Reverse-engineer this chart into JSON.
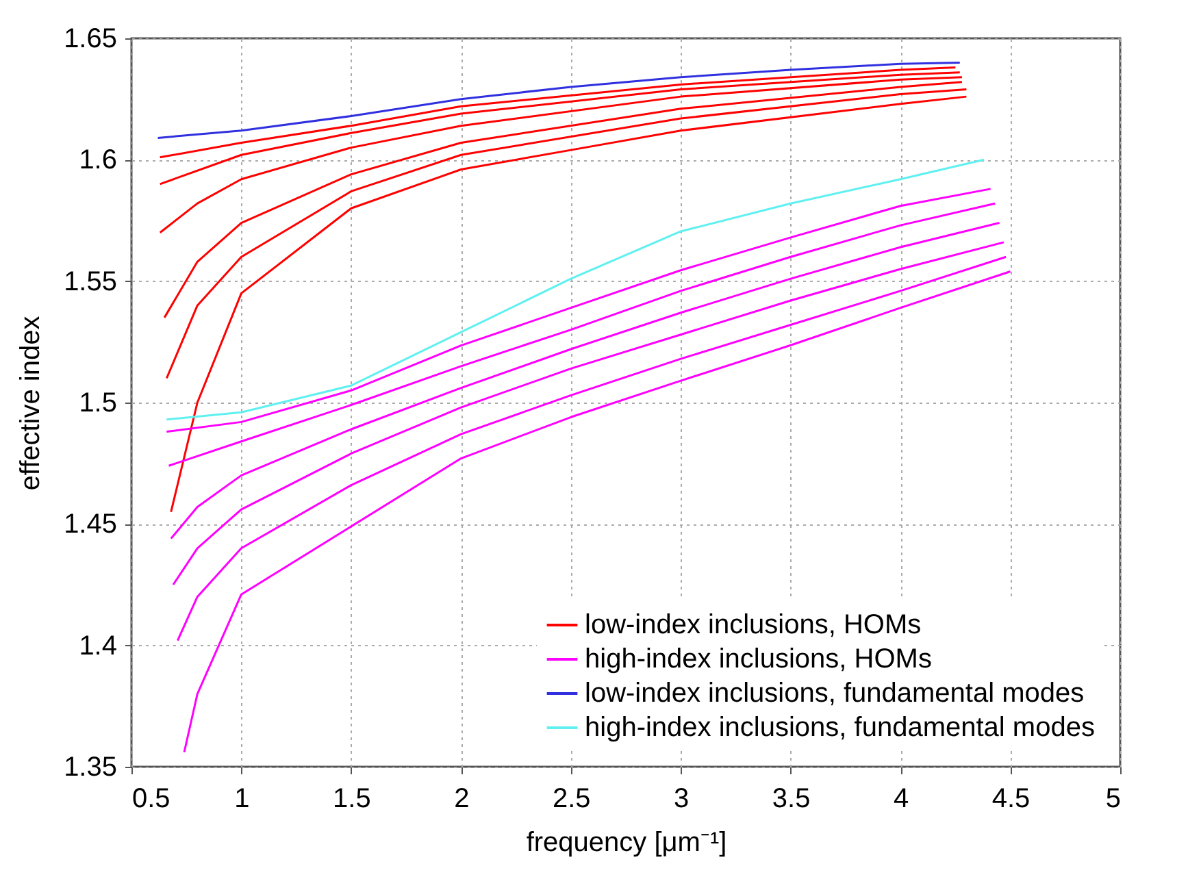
{
  "chart_data": {
    "type": "line",
    "xlabel": "frequency [μm⁻¹]",
    "ylabel": "effective index",
    "xlim": [
      0.5,
      5
    ],
    "xticks": [
      0.5,
      1,
      1.5,
      2,
      2.5,
      3,
      3.5,
      4,
      4.5,
      5
    ],
    "ylim": [
      1.35,
      1.65
    ],
    "yticks": [
      1.35,
      1.4,
      1.45,
      1.5,
      1.55,
      1.6,
      1.65
    ],
    "grid": true,
    "legend": "bottom right",
    "series": [
      {
        "name": "low-index inclusions, HOMs",
        "color": "#ff0000",
        "x": [
          0.63,
          1,
          1.5,
          2,
          3,
          4,
          4.25
        ],
        "values": [
          1.601,
          1.607,
          1.614,
          1.622,
          1.631,
          1.637,
          1.638
        ]
      },
      {
        "name": "high-index inclusions, HOMs",
        "color": "#ff00ff",
        "x": [
          0.66,
          1,
          1.5,
          2,
          2.5,
          3,
          3.5,
          4,
          4.41
        ],
        "values": [
          1.488,
          1.492,
          1.505,
          1.5235,
          1.539,
          1.5545,
          1.568,
          1.581,
          1.588
        ]
      },
      {
        "name": "low-index inclusions, fundamental modes",
        "color": "#3030e0",
        "x": [
          0.62,
          1,
          1.5,
          2,
          2.5,
          3,
          3.5,
          4,
          4.27
        ],
        "values": [
          1.609,
          1.612,
          1.618,
          1.625,
          1.63,
          1.634,
          1.637,
          1.6395,
          1.64
        ]
      },
      {
        "name": "high-index inclusions, fundamental modes",
        "color": "#60f0f0",
        "x": [
          0.66,
          1,
          1.5,
          2,
          2.5,
          3,
          3.5,
          4,
          4.38
        ],
        "values": [
          1.493,
          1.496,
          1.507,
          1.529,
          1.551,
          1.5705,
          1.582,
          1.592,
          1.6
        ]
      },
      {
        "color": "#ff0000",
        "x": [
          0.63,
          1,
          1.5,
          2,
          3,
          4,
          4.27
        ],
        "values": [
          1.59,
          1.602,
          1.611,
          1.619,
          1.629,
          1.635,
          1.636
        ]
      },
      {
        "color": "#ff0000",
        "x": [
          0.63,
          0.8,
          1,
          1.5,
          2,
          3,
          4,
          4.28
        ],
        "values": [
          1.57,
          1.582,
          1.592,
          1.605,
          1.614,
          1.626,
          1.633,
          1.634
        ]
      },
      {
        "color": "#ff0000",
        "x": [
          0.65,
          0.8,
          1,
          1.5,
          2,
          3,
          4,
          4.28
        ],
        "values": [
          1.535,
          1.558,
          1.574,
          1.594,
          1.607,
          1.621,
          1.63,
          1.632
        ]
      },
      {
        "color": "#ff0000",
        "x": [
          0.66,
          0.8,
          1,
          1.5,
          2,
          3,
          4,
          4.3
        ],
        "values": [
          1.51,
          1.54,
          1.56,
          1.587,
          1.602,
          1.617,
          1.627,
          1.629
        ]
      },
      {
        "color": "#ff0000",
        "x": [
          0.68,
          0.8,
          1,
          1.5,
          2,
          2.5,
          3,
          4,
          4.3
        ],
        "values": [
          1.455,
          1.5,
          1.545,
          1.58,
          1.596,
          1.604,
          1.612,
          1.623,
          1.626
        ]
      },
      {
        "color": "#ff00ff",
        "x": [
          0.67,
          1,
          1.5,
          2,
          2.5,
          3,
          3.5,
          4,
          4.43
        ],
        "values": [
          1.474,
          1.484,
          1.499,
          1.515,
          1.53,
          1.546,
          1.56,
          1.573,
          1.582
        ]
      },
      {
        "color": "#ff00ff",
        "x": [
          0.68,
          0.8,
          1,
          1.5,
          2,
          2.5,
          3,
          3.5,
          4,
          4.45
        ],
        "values": [
          1.444,
          1.457,
          1.47,
          1.489,
          1.506,
          1.522,
          1.537,
          1.551,
          1.564,
          1.574
        ]
      },
      {
        "color": "#ff00ff",
        "x": [
          0.69,
          0.8,
          1,
          1.5,
          2,
          2.5,
          3,
          3.5,
          4,
          4.47
        ],
        "values": [
          1.425,
          1.44,
          1.456,
          1.479,
          1.498,
          1.514,
          1.528,
          1.542,
          1.555,
          1.566
        ]
      },
      {
        "color": "#ff00ff",
        "x": [
          0.71,
          0.8,
          1,
          1.5,
          2,
          2.5,
          3,
          3.5,
          4,
          4.48
        ],
        "values": [
          1.402,
          1.42,
          1.44,
          1.466,
          1.487,
          1.503,
          1.518,
          1.532,
          1.546,
          1.56
        ]
      },
      {
        "color": "#ff00ff",
        "x": [
          0.74,
          0.8,
          1,
          1.5,
          2,
          2.5,
          3,
          3.5,
          4,
          4.5
        ],
        "values": [
          1.356,
          1.38,
          1.421,
          1.449,
          1.477,
          1.494,
          1.509,
          1.5236,
          1.539,
          1.554
        ]
      }
    ]
  }
}
